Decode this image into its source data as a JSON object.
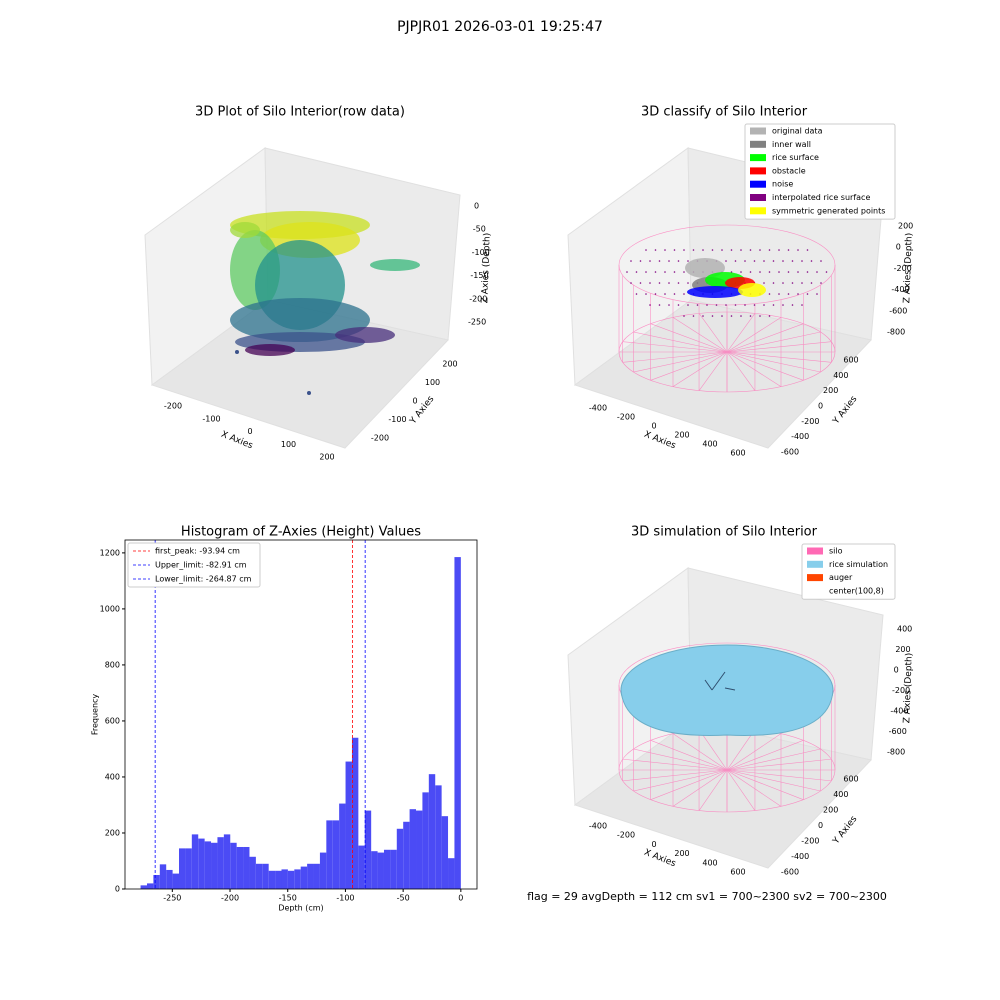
{
  "title": "PJPJR01 2026-03-01 19:25:47",
  "chart_data": [
    {
      "type": "scatter3d",
      "title": "3D Plot of Silo Interior(row data)",
      "xlabel": "X Axies",
      "ylabel": "Y Axies",
      "zlabel": "Z Axies (Depth)",
      "xticks": [
        -200,
        -100,
        0,
        100,
        200
      ],
      "yticks": [
        -200,
        -100,
        0,
        100,
        200
      ],
      "zticks": [
        0,
        -50,
        -100,
        -150,
        -200,
        -250
      ]
    },
    {
      "type": "scatter3d",
      "title": "3D classify of Silo Interior",
      "xlabel": "X Axies",
      "ylabel": "Y Axies",
      "zlabel": "Z Axies (Depth)",
      "xticks": [
        -400,
        -200,
        0,
        200,
        400,
        600
      ],
      "yticks": [
        -600,
        -400,
        -200,
        0,
        200,
        400,
        600
      ],
      "zticks": [
        200,
        0,
        -200,
        -400,
        -600,
        -800
      ],
      "legend": [
        {
          "name": "original data",
          "color": "#b3b3b3"
        },
        {
          "name": "inner wall",
          "color": "#808080"
        },
        {
          "name": "rice surface",
          "color": "#00ff00"
        },
        {
          "name": "obstacle",
          "color": "#ff0000"
        },
        {
          "name": "noise",
          "color": "#0000ff"
        },
        {
          "name": "interpolated rice surface",
          "color": "#800080"
        },
        {
          "name": "symmetric generated points",
          "color": "#ffff00"
        }
      ]
    },
    {
      "type": "histogram",
      "title": "Histogram of Z-Axies (Height) Values",
      "xlabel": "Depth (cm)",
      "ylabel": "Frequency",
      "color": "#4b4bf5",
      "bins": [
        -277.5,
        -271.95,
        -266.4,
        -260.85,
        -255.3,
        -249.75,
        -244.2,
        -238.65,
        -233.1,
        -227.55,
        -222,
        -216.45,
        -210.9,
        -205.35,
        -199.8,
        -194.25,
        -188.7,
        -183.15,
        -177.6,
        -172.05,
        -166.5,
        -160.95,
        -155.4,
        -149.85,
        -144.3,
        -138.75,
        -133.2,
        -127.65,
        -122.1,
        -116.55,
        -111,
        -105.45,
        -99.9,
        -94.35,
        -88.8,
        -83.25,
        -77.7,
        -72.15,
        -66.6,
        -61.05,
        -55.5,
        -49.95,
        -44.4,
        -38.85,
        -33.3,
        -27.75,
        -22.2,
        -16.65,
        -11.1,
        -5.55,
        0
      ],
      "values": [
        13,
        20,
        50,
        88,
        68,
        55,
        145,
        145,
        195,
        180,
        170,
        165,
        185,
        195,
        165,
        150,
        150,
        115,
        90,
        90,
        65,
        65,
        70,
        65,
        70,
        80,
        90,
        90,
        130,
        245,
        245,
        305,
        455,
        540,
        155,
        280,
        135,
        130,
        140,
        140,
        215,
        240,
        285,
        280,
        345,
        410,
        370,
        260,
        110,
        1185
      ],
      "xlim": [
        -291,
        14
      ],
      "xticks": [
        -250,
        -200,
        -150,
        -100,
        -50,
        0
      ],
      "ylim": [
        0,
        1246
      ],
      "yticks": [
        0,
        200,
        400,
        600,
        800,
        1000,
        1200
      ],
      "lines": [
        {
          "name": "first_peak: -93.94 cm",
          "value": -93.94,
          "color": "#ff0000"
        },
        {
          "name": "Upper_limit: -82.91 cm",
          "value": -82.91,
          "color": "#0000ff"
        },
        {
          "name": "Lower_limit: -264.87 cm",
          "value": -264.87,
          "color": "#0000ff"
        }
      ],
      "legend_position": "upper left"
    },
    {
      "type": "surface3d",
      "title": "3D simulation of Silo Interior",
      "xlabel": "X Axies",
      "ylabel": "Y Axies",
      "zlabel": "Z Axies (Depth)",
      "xticks": [
        -400,
        -200,
        0,
        200,
        400,
        600
      ],
      "yticks": [
        -600,
        -400,
        -200,
        0,
        200,
        400,
        600
      ],
      "zticks": [
        400,
        200,
        0,
        -200,
        -400,
        -600,
        -800
      ],
      "legend": [
        {
          "name": "silo",
          "color": "#ff69b4"
        },
        {
          "name": "rice simulation",
          "color": "#87ceeb"
        },
        {
          "name": "auger",
          "color": "#ff4500"
        },
        {
          "name": "center(100,8)",
          "color": "#ffffff"
        }
      ]
    }
  ],
  "footer": "flag = 29  avgDepth = 112 cm  sv1 = 700~2300  sv2 = 700~2300"
}
